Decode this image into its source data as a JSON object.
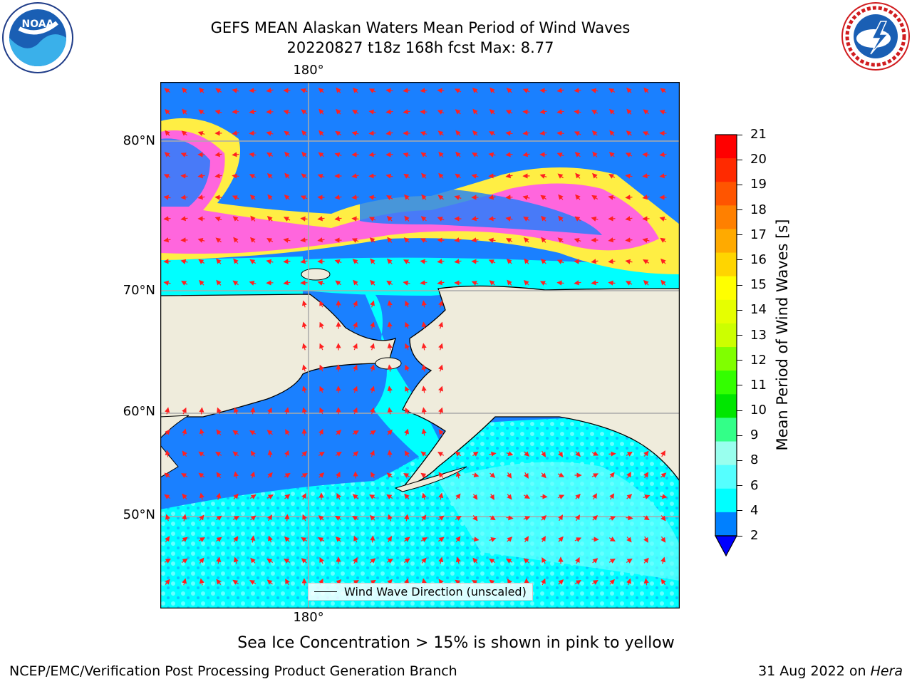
{
  "header": {
    "title_line1": "GEFS MEAN Alaskan Waters Mean Period of Wind Waves",
    "title_line2": "20220827 t18z 168h fcst   Max: 8.77"
  },
  "logos": {
    "left": "NOAA",
    "right": "NATIONAL WEATHER SERVICE"
  },
  "map": {
    "lat_labels": [
      "80°N",
      "70°N",
      "60°N",
      "50°N"
    ],
    "lon_label_top": "180°",
    "lon_label_bottom": "180°",
    "legend_label": "Wind Wave Direction (unscaled)",
    "colors": {
      "land": "#efecdc",
      "ocean_deep": "#1a80ff",
      "ocean_mid": "#00ffff",
      "ocean_light": "#66ffff",
      "ice_pink": "#ff66dd",
      "ice_yellow": "#ffee44",
      "arrow": "#ff2020"
    }
  },
  "colorbar": {
    "title": "Mean Period of Wind Waves [s]",
    "ticks": [
      "21",
      "20",
      "19",
      "18",
      "17",
      "16",
      "15",
      "14",
      "13",
      "12",
      "11",
      "10",
      "9",
      "8",
      "6",
      "4",
      "2"
    ],
    "colors": [
      "#ff0000",
      "#ff2a00",
      "#ff5500",
      "#ff8000",
      "#ffaa00",
      "#ffd500",
      "#ffff00",
      "#e6ff00",
      "#ccff00",
      "#80ff00",
      "#33ff00",
      "#00e600",
      "#33ff88",
      "#99ffee",
      "#55ffff",
      "#00ffff",
      "#0080ff"
    ],
    "below_color": "#0000ff"
  },
  "caption": "Sea Ice Concentration > 15% is shown in pink to yellow",
  "footer": {
    "left": "NCEP/EMC/Verification Post Processing Product Generation Branch",
    "right_date": "31 Aug 2022 on",
    "right_machine": "Hera"
  }
}
